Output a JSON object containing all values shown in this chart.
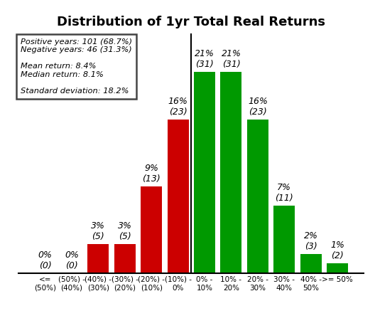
{
  "title": "Distribution of 1yr Total Real Returns",
  "categories": [
    "<=\n(50%)",
    "(50%) -\n(40%)",
    "(40%) -\n(30%)",
    "(30%) -\n(20%)",
    "(20%) -\n(10%)",
    "(10%) -\n0%",
    "0% -\n10%",
    "10% -\n20%",
    "20% -\n30%",
    "30% -\n40%",
    "40% -\n50%",
    ">= 50%"
  ],
  "values": [
    0,
    0,
    3,
    3,
    9,
    16,
    21,
    21,
    16,
    7,
    2,
    1
  ],
  "counts": [
    0,
    0,
    5,
    5,
    13,
    23,
    31,
    31,
    23,
    11,
    3,
    2
  ],
  "colors": [
    "#cc0000",
    "#cc0000",
    "#cc0000",
    "#cc0000",
    "#cc0000",
    "#cc0000",
    "#009900",
    "#009900",
    "#009900",
    "#009900",
    "#009900",
    "#009900"
  ],
  "annotation_text": "Positive years: 101 (68.7%)\nNegative years: 46 (31.3%)\n\nMean return: 8.4%\nMedian return: 8.1%\n\nStandard deviation: 18.2%",
  "divider_index": 6,
  "ylim": [
    0,
    25
  ]
}
